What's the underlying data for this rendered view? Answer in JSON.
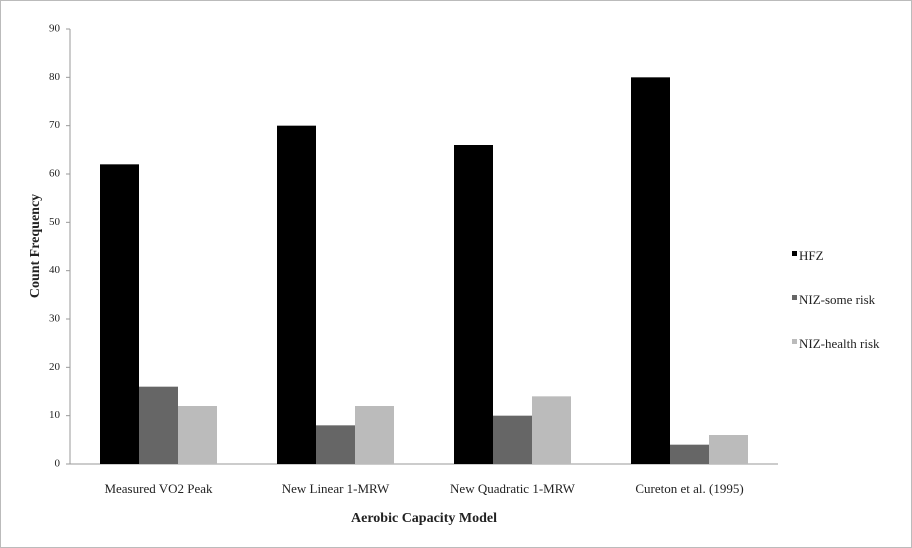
{
  "chart_data": {
    "type": "bar",
    "x_label": "Aerobic Capacity Model",
    "y_label": "Count Frequency",
    "categories": [
      "Measured VO2 Peak",
      "New Linear 1-MRW",
      "New Quadratic 1-MRW",
      "Cureton et al. (1995)"
    ],
    "series": [
      {
        "name": "HFZ",
        "color": "#000000",
        "values": [
          62,
          70,
          66,
          80
        ]
      },
      {
        "name": "NIZ-some risk",
        "color": "#666666",
        "values": [
          16,
          8,
          10,
          4
        ]
      },
      {
        "name": "NIZ-health risk",
        "color": "#bbbbbb",
        "values": [
          12,
          12,
          14,
          6
        ]
      }
    ],
    "ylim": [
      0,
      90
    ],
    "yticks": [
      0,
      10,
      20,
      30,
      40,
      50,
      60,
      70,
      80,
      90
    ],
    "grid": false,
    "legend": "right"
  }
}
